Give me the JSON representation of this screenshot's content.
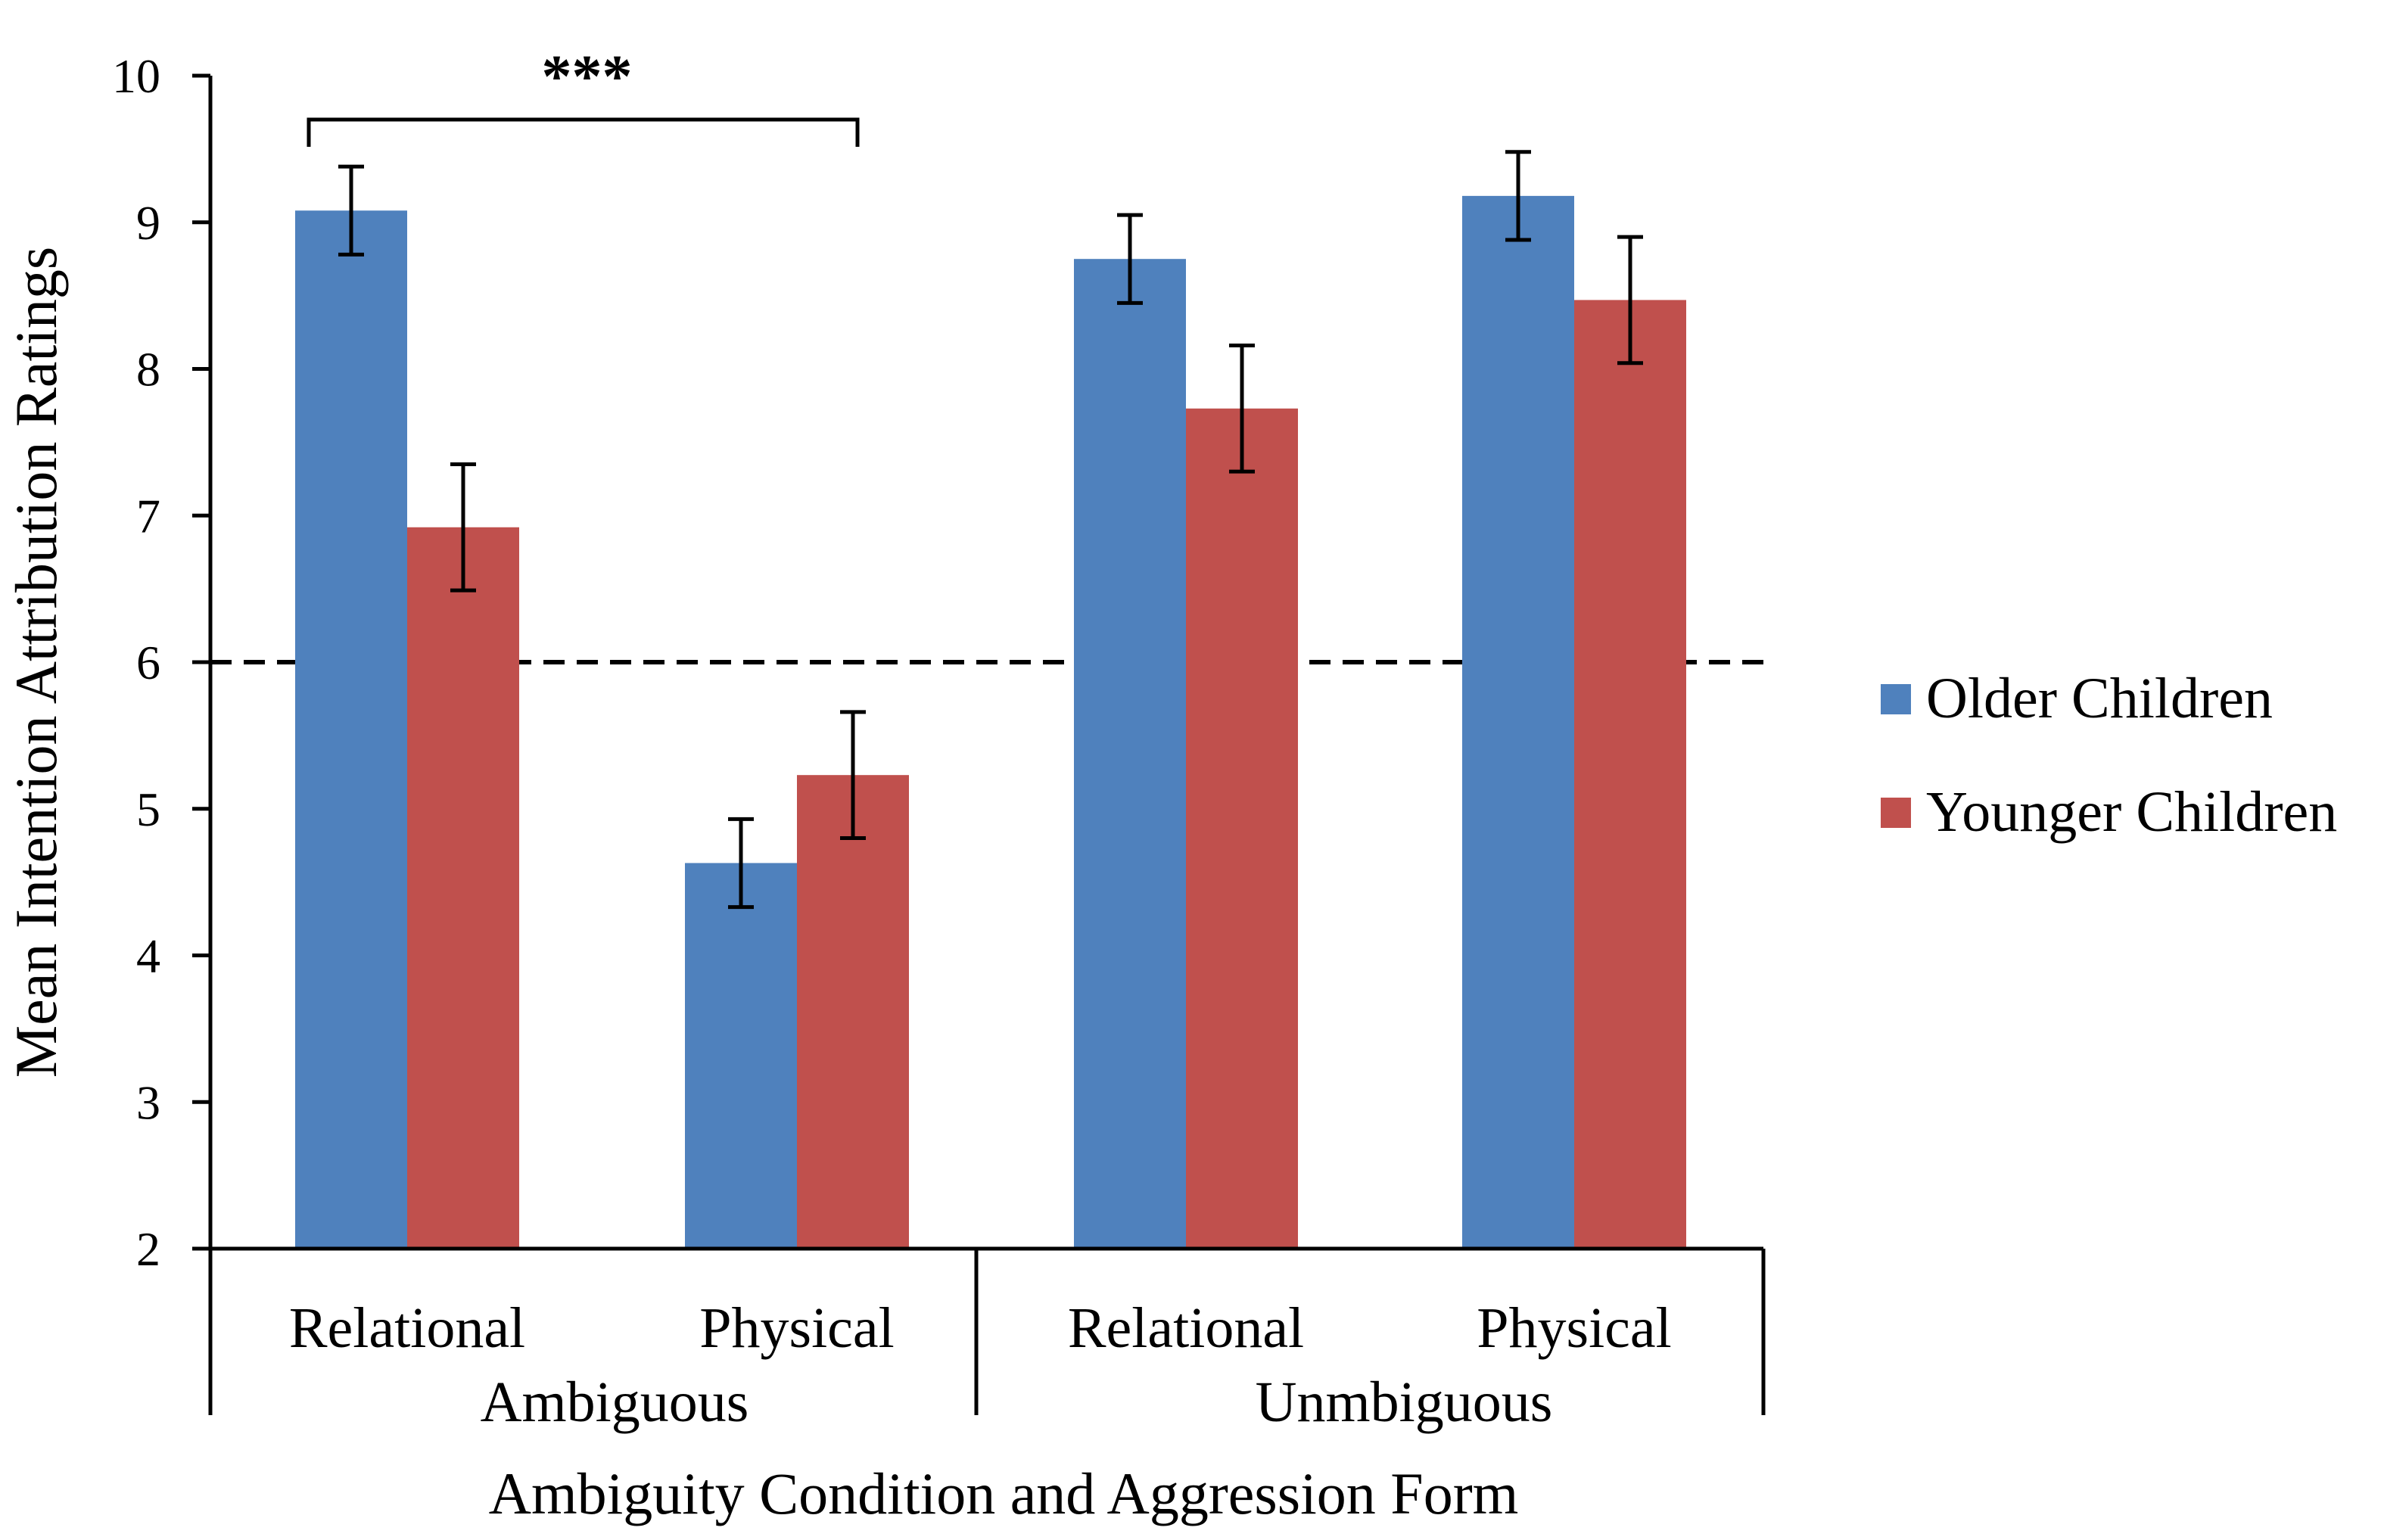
{
  "chart_data": {
    "type": "bar",
    "title": "",
    "ylabel": "Mean Intention Attribution Ratings",
    "xlabel": "Ambiguity Condition and Aggression Form",
    "ylim": [
      2,
      10
    ],
    "yticks": [
      2,
      3,
      4,
      5,
      6,
      7,
      8,
      9,
      10
    ],
    "groups": [
      {
        "name": "Ambiguous",
        "categories": [
          "Relational",
          "Physical"
        ]
      },
      {
        "name": "Unmbiguous",
        "categories": [
          "Relational",
          "Physical"
        ]
      }
    ],
    "series": [
      {
        "name": "Older Children",
        "color": "#4F81BD",
        "values": [
          9.08,
          4.63,
          8.75,
          9.18
        ],
        "errors": [
          0.3,
          0.3,
          0.3,
          0.3
        ]
      },
      {
        "name": "Younger Children",
        "color": "#C0504D",
        "values": [
          6.92,
          5.23,
          7.73,
          8.47
        ],
        "errors": [
          0.43,
          0.43,
          0.43,
          0.43
        ]
      }
    ],
    "reference_line": {
      "value": 6,
      "style": "dashed"
    },
    "annotation": {
      "text": "***",
      "from_category": 0,
      "to_category": 1
    },
    "legend": {
      "position": "right"
    }
  }
}
